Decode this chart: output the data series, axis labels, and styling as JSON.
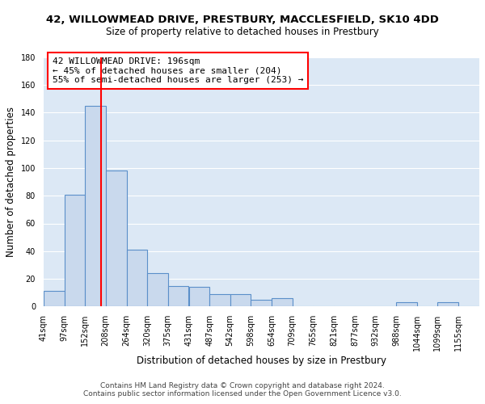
{
  "title": "42, WILLOWMEAD DRIVE, PRESTBURY, MACCLESFIELD, SK10 4DD",
  "subtitle": "Size of property relative to detached houses in Prestbury",
  "xlabel": "Distribution of detached houses by size in Prestbury",
  "ylabel": "Number of detached properties",
  "bin_labels": [
    "41sqm",
    "97sqm",
    "152sqm",
    "208sqm",
    "264sqm",
    "320sqm",
    "375sqm",
    "431sqm",
    "487sqm",
    "542sqm",
    "598sqm",
    "654sqm",
    "709sqm",
    "765sqm",
    "821sqm",
    "877sqm",
    "932sqm",
    "988sqm",
    "1044sqm",
    "1099sqm",
    "1155sqm"
  ],
  "bar_heights": [
    11,
    81,
    145,
    98,
    41,
    24,
    15,
    14,
    9,
    9,
    5,
    6,
    0,
    0,
    0,
    0,
    0,
    3,
    0,
    3,
    0
  ],
  "bar_color": "#c9d9ed",
  "bar_edge_color": "#5b8fc9",
  "red_line_x": 196,
  "bin_edges": [
    41,
    97,
    152,
    208,
    264,
    320,
    375,
    431,
    487,
    542,
    598,
    654,
    709,
    765,
    821,
    877,
    932,
    988,
    1044,
    1099,
    1155,
    1211
  ],
  "annotation_box_text": "42 WILLOWMEAD DRIVE: 196sqm\n← 45% of detached houses are smaller (204)\n55% of semi-detached houses are larger (253) →",
  "ylim": [
    0,
    180
  ],
  "yticks": [
    0,
    20,
    40,
    60,
    80,
    100,
    120,
    140,
    160,
    180
  ],
  "footer_line1": "Contains HM Land Registry data © Crown copyright and database right 2024.",
  "footer_line2": "Contains public sector information licensed under the Open Government Licence v3.0.",
  "fig_background_color": "#ffffff",
  "plot_bg_color": "#dce8f5",
  "grid_color": "#ffffff",
  "title_fontsize": 9.5,
  "subtitle_fontsize": 8.5,
  "axis_label_fontsize": 8.5,
  "tick_fontsize": 7,
  "footer_fontsize": 6.5,
  "annotation_fontsize": 8
}
